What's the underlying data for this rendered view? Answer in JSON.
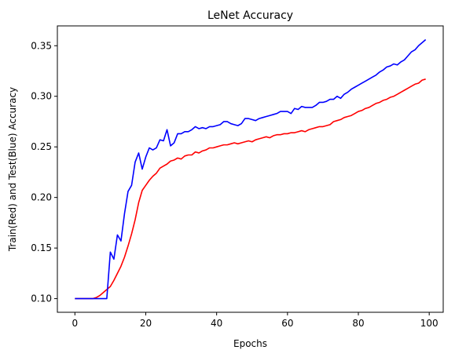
{
  "chart_data": {
    "type": "line",
    "title": "LeNet Accuracy",
    "xlabel": "Epochs",
    "ylabel": "Train(Red) and Test(Blue) Accuracy",
    "xlim": [
      -4.95,
      103.95
    ],
    "ylim": [
      0.0865,
      0.3696
    ],
    "grid": false,
    "x_ticks": [
      0,
      20,
      40,
      60,
      80,
      100
    ],
    "y_ticks": [
      0.1,
      0.15,
      0.2,
      0.25,
      0.3,
      0.35
    ],
    "x_tick_labels": [
      "0",
      "20",
      "40",
      "60",
      "80",
      "100"
    ],
    "y_tick_labels": [
      "0.10",
      "0.15",
      "0.20",
      "0.25",
      "0.30",
      "0.35"
    ],
    "series": [
      {
        "color": "#ff0000",
        "x": [
          0,
          1,
          2,
          3,
          4,
          5,
          6,
          7,
          8,
          9,
          10,
          11,
          12,
          13,
          14,
          15,
          16,
          17,
          18,
          19,
          20,
          21,
          22,
          23,
          24,
          25,
          26,
          27,
          28,
          29,
          30,
          31,
          32,
          33,
          34,
          35,
          36,
          37,
          38,
          39,
          40,
          41,
          42,
          43,
          44,
          45,
          46,
          47,
          48,
          49,
          50,
          51,
          52,
          53,
          54,
          55,
          56,
          57,
          58,
          59,
          60,
          61,
          62,
          63,
          64,
          65,
          66,
          67,
          68,
          69,
          70,
          71,
          72,
          73,
          74,
          75,
          76,
          77,
          78,
          79,
          80,
          81,
          82,
          83,
          84,
          85,
          86,
          87,
          88,
          89,
          90,
          91,
          92,
          93,
          94,
          95,
          96,
          97,
          98,
          99
        ],
        "values": [
          0.1,
          0.1,
          0.1,
          0.1,
          0.1,
          0.1,
          0.101,
          0.103,
          0.106,
          0.109,
          0.112,
          0.118,
          0.125,
          0.132,
          0.141,
          0.152,
          0.164,
          0.178,
          0.195,
          0.207,
          0.212,
          0.217,
          0.221,
          0.224,
          0.229,
          0.231,
          0.233,
          0.236,
          0.237,
          0.239,
          0.238,
          0.241,
          0.242,
          0.242,
          0.245,
          0.244,
          0.246,
          0.247,
          0.249,
          0.249,
          0.25,
          0.251,
          0.252,
          0.252,
          0.253,
          0.254,
          0.253,
          0.254,
          0.255,
          0.256,
          0.255,
          0.257,
          0.258,
          0.259,
          0.26,
          0.259,
          0.261,
          0.262,
          0.262,
          0.263,
          0.263,
          0.264,
          0.264,
          0.265,
          0.266,
          0.265,
          0.267,
          0.268,
          0.269,
          0.27,
          0.27,
          0.271,
          0.272,
          0.275,
          0.276,
          0.277,
          0.279,
          0.28,
          0.281,
          0.283,
          0.285,
          0.286,
          0.288,
          0.289,
          0.291,
          0.293,
          0.294,
          0.296,
          0.297,
          0.299,
          0.3,
          0.302,
          0.304,
          0.306,
          0.308,
          0.31,
          0.312,
          0.313,
          0.316,
          0.317
        ]
      },
      {
        "color": "#0000ff",
        "x": [
          0,
          1,
          2,
          3,
          4,
          5,
          6,
          7,
          8,
          9,
          10,
          11,
          12,
          13,
          14,
          15,
          16,
          17,
          18,
          19,
          20,
          21,
          22,
          23,
          24,
          25,
          26,
          27,
          28,
          29,
          30,
          31,
          32,
          33,
          34,
          35,
          36,
          37,
          38,
          39,
          40,
          41,
          42,
          43,
          44,
          45,
          46,
          47,
          48,
          49,
          50,
          51,
          52,
          53,
          54,
          55,
          56,
          57,
          58,
          59,
          60,
          61,
          62,
          63,
          64,
          65,
          66,
          67,
          68,
          69,
          70,
          71,
          72,
          73,
          74,
          75,
          76,
          77,
          78,
          79,
          80,
          81,
          82,
          83,
          84,
          85,
          86,
          87,
          88,
          89,
          90,
          91,
          92,
          93,
          94,
          95,
          96,
          97,
          98,
          99
        ],
        "values": [
          0.1,
          0.1,
          0.1,
          0.1,
          0.1,
          0.1,
          0.1,
          0.1,
          0.1,
          0.1,
          0.146,
          0.139,
          0.163,
          0.157,
          0.184,
          0.206,
          0.212,
          0.235,
          0.244,
          0.228,
          0.24,
          0.249,
          0.247,
          0.249,
          0.257,
          0.256,
          0.267,
          0.251,
          0.254,
          0.263,
          0.263,
          0.265,
          0.265,
          0.267,
          0.27,
          0.268,
          0.269,
          0.268,
          0.27,
          0.27,
          0.271,
          0.272,
          0.275,
          0.275,
          0.273,
          0.272,
          0.271,
          0.273,
          0.278,
          0.278,
          0.277,
          0.276,
          0.278,
          0.279,
          0.28,
          0.281,
          0.282,
          0.283,
          0.285,
          0.285,
          0.285,
          0.283,
          0.288,
          0.287,
          0.29,
          0.289,
          0.289,
          0.289,
          0.291,
          0.294,
          0.294,
          0.295,
          0.297,
          0.297,
          0.3,
          0.298,
          0.302,
          0.304,
          0.307,
          0.309,
          0.311,
          0.313,
          0.315,
          0.317,
          0.319,
          0.321,
          0.324,
          0.326,
          0.329,
          0.33,
          0.332,
          0.331,
          0.334,
          0.336,
          0.34,
          0.344,
          0.346,
          0.35,
          0.353,
          0.356
        ]
      }
    ]
  }
}
